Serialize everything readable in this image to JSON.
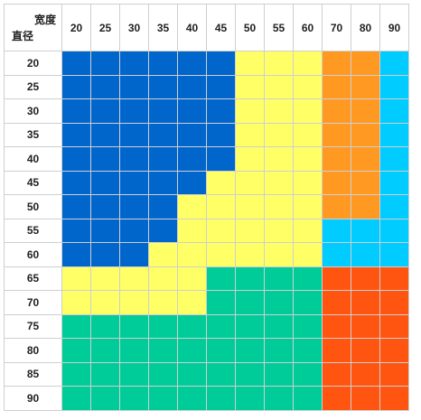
{
  "header": {
    "col_axis_label": "宽度",
    "row_axis_label": "直径"
  },
  "columns": [
    "20",
    "25",
    "30",
    "35",
    "40",
    "45",
    "50",
    "55",
    "60",
    "70",
    "80",
    "90"
  ],
  "rows": [
    "20",
    "25",
    "30",
    "35",
    "40",
    "45",
    "50",
    "55",
    "60",
    "65",
    "70",
    "75",
    "80",
    "85",
    "90"
  ],
  "colors": {
    "B": "#0066cc",
    "Y": "#ffff66",
    "O": "#ff9922",
    "C": "#00ccff",
    "G": "#00cc99",
    "R": "#ff5511"
  },
  "grid": [
    [
      "B",
      "B",
      "B",
      "B",
      "B",
      "B",
      "Y",
      "Y",
      "Y",
      "O",
      "O",
      "C"
    ],
    [
      "B",
      "B",
      "B",
      "B",
      "B",
      "B",
      "Y",
      "Y",
      "Y",
      "O",
      "O",
      "C"
    ],
    [
      "B",
      "B",
      "B",
      "B",
      "B",
      "B",
      "Y",
      "Y",
      "Y",
      "O",
      "O",
      "C"
    ],
    [
      "B",
      "B",
      "B",
      "B",
      "B",
      "B",
      "Y",
      "Y",
      "Y",
      "O",
      "O",
      "C"
    ],
    [
      "B",
      "B",
      "B",
      "B",
      "B",
      "B",
      "Y",
      "Y",
      "Y",
      "O",
      "O",
      "C"
    ],
    [
      "B",
      "B",
      "B",
      "B",
      "B",
      "Y",
      "Y",
      "Y",
      "Y",
      "O",
      "O",
      "C"
    ],
    [
      "B",
      "B",
      "B",
      "B",
      "Y",
      "Y",
      "Y",
      "Y",
      "Y",
      "O",
      "O",
      "C"
    ],
    [
      "B",
      "B",
      "B",
      "B",
      "Y",
      "Y",
      "Y",
      "Y",
      "Y",
      "C",
      "C",
      "C"
    ],
    [
      "B",
      "B",
      "B",
      "Y",
      "Y",
      "Y",
      "Y",
      "Y",
      "Y",
      "C",
      "C",
      "C"
    ],
    [
      "Y",
      "Y",
      "Y",
      "Y",
      "Y",
      "G",
      "G",
      "G",
      "G",
      "R",
      "R",
      "R"
    ],
    [
      "Y",
      "Y",
      "Y",
      "Y",
      "Y",
      "G",
      "G",
      "G",
      "G",
      "R",
      "R",
      "R"
    ],
    [
      "G",
      "G",
      "G",
      "G",
      "G",
      "G",
      "G",
      "G",
      "G",
      "R",
      "R",
      "R"
    ],
    [
      "G",
      "G",
      "G",
      "G",
      "G",
      "G",
      "G",
      "G",
      "G",
      "R",
      "R",
      "R"
    ],
    [
      "G",
      "G",
      "G",
      "G",
      "G",
      "G",
      "G",
      "G",
      "G",
      "R",
      "R",
      "R"
    ],
    [
      "G",
      "G",
      "G",
      "G",
      "G",
      "G",
      "G",
      "G",
      "G",
      "R",
      "R",
      "R"
    ]
  ]
}
